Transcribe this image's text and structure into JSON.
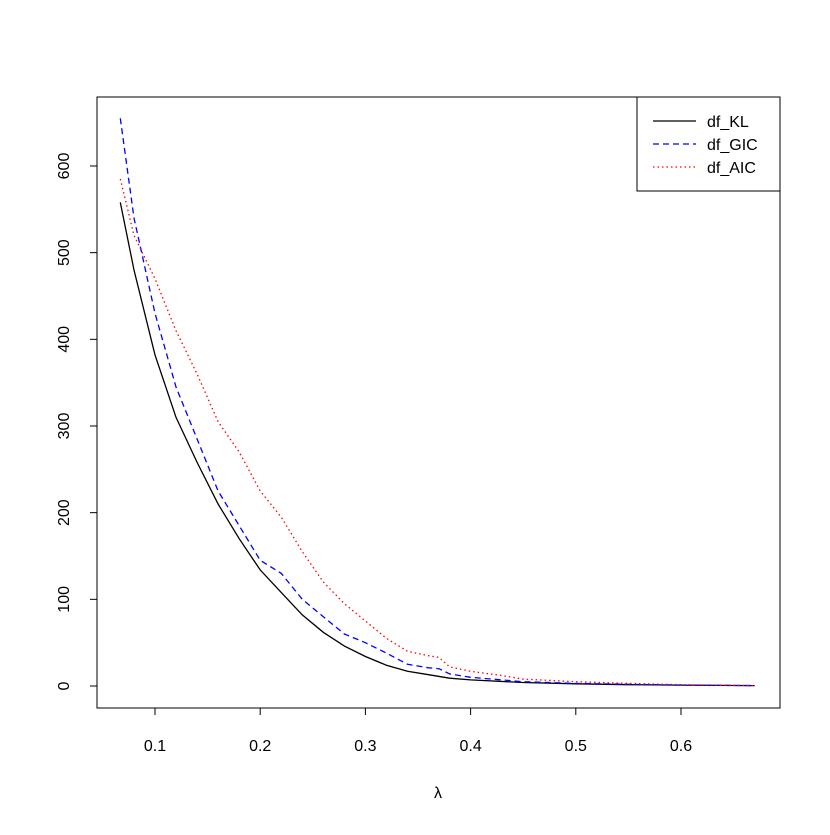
{
  "chart_data": {
    "type": "line",
    "title": "",
    "xlabel": "λ",
    "ylabel": "",
    "xlim": [
      0.04,
      0.7
    ],
    "ylim": [
      -25,
      680
    ],
    "grid": false,
    "legend_position": "top-right",
    "x_ticks": [
      "0.1",
      "0.2",
      "0.3",
      "0.4",
      "0.5",
      "0.6"
    ],
    "x_tick_values": [
      0.1,
      0.2,
      0.3,
      0.4,
      0.5,
      0.6
    ],
    "y_ticks": [
      "0",
      "100",
      "200",
      "300",
      "400",
      "500",
      "600"
    ],
    "y_tick_values": [
      0,
      100,
      200,
      300,
      400,
      500,
      600
    ],
    "series": [
      {
        "name": "df_KL",
        "color": "#000000",
        "dash": "solid",
        "x": [
          0.067,
          0.08,
          0.1,
          0.12,
          0.14,
          0.16,
          0.18,
          0.2,
          0.22,
          0.24,
          0.26,
          0.28,
          0.3,
          0.32,
          0.34,
          0.36,
          0.38,
          0.4,
          0.45,
          0.5,
          0.55,
          0.6,
          0.67
        ],
        "y": [
          558,
          480,
          382,
          310,
          258,
          210,
          170,
          134,
          108,
          82,
          62,
          46,
          34,
          24,
          17,
          13,
          9,
          7,
          4,
          2.5,
          1.5,
          1,
          0.5
        ]
      },
      {
        "name": "df_GIC",
        "color": "#0000ff",
        "dash": "dashed",
        "x": [
          0.067,
          0.08,
          0.1,
          0.12,
          0.14,
          0.16,
          0.18,
          0.2,
          0.22,
          0.24,
          0.26,
          0.28,
          0.3,
          0.32,
          0.34,
          0.36,
          0.37,
          0.38,
          0.4,
          0.45,
          0.5,
          0.55,
          0.6,
          0.67
        ],
        "y": [
          655,
          540,
          430,
          345,
          285,
          225,
          185,
          145,
          130,
          100,
          80,
          60,
          50,
          38,
          25,
          21,
          20,
          14,
          10,
          5,
          3,
          2,
          1,
          0.5
        ]
      },
      {
        "name": "df_AIC",
        "color": "#ff0000",
        "dash": "dotted",
        "x": [
          0.067,
          0.08,
          0.1,
          0.12,
          0.14,
          0.16,
          0.18,
          0.2,
          0.22,
          0.24,
          0.26,
          0.28,
          0.3,
          0.32,
          0.34,
          0.36,
          0.37,
          0.38,
          0.4,
          0.43,
          0.45,
          0.5,
          0.55,
          0.6,
          0.67
        ],
        "y": [
          585,
          520,
          470,
          410,
          360,
          305,
          270,
          225,
          195,
          155,
          120,
          95,
          75,
          55,
          40,
          35,
          33,
          22,
          17,
          12,
          8,
          5,
          3,
          1.5,
          0.5
        ]
      }
    ]
  }
}
